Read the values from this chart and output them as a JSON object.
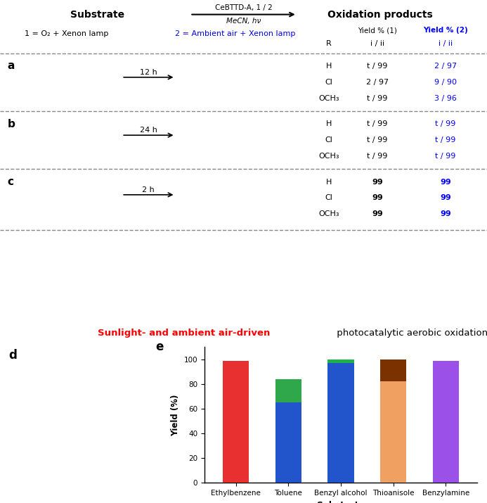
{
  "categories": [
    "Ethylbenzene",
    "Toluene",
    "Benzyl alcohol",
    "Thioanisole",
    "Benzylamine"
  ],
  "bar_data": [
    {
      "substrate": "Ethylbenzene",
      "segments": [
        {
          "value": 99,
          "color": "#e83030"
        }
      ]
    },
    {
      "substrate": "Toluene",
      "segments": [
        {
          "value": 65,
          "color": "#2255cc"
        },
        {
          "value": 19,
          "color": "#2ea84a"
        }
      ]
    },
    {
      "substrate": "Benzyl alcohol",
      "segments": [
        {
          "value": 97,
          "color": "#2255cc"
        },
        {
          "value": 3,
          "color": "#1db34a"
        }
      ]
    },
    {
      "substrate": "Thioanisole",
      "segments": [
        {
          "value": 82,
          "color": "#f0a060"
        },
        {
          "value": 18,
          "color": "#7b3200"
        }
      ]
    },
    {
      "substrate": "Benzylamine",
      "segments": [
        {
          "value": 99,
          "color": "#9b50e8"
        }
      ]
    }
  ],
  "ylabel": "Yield (%)",
  "xlabel": "Substrate",
  "ylim": [
    0,
    110
  ],
  "yticks": [
    0,
    20,
    40,
    60,
    80,
    100
  ],
  "bg_color": "#ffffff",
  "bar_width": 0.5,
  "header_arrow_text_above": "CeBTTD-A, 1 / 2",
  "header_arrow_text_below": "MeCN, hν",
  "header_left": "Substrate",
  "header_right": "Oxidation products",
  "cond1": "1 = O₂ + Xenon lamp",
  "cond2": "2 = Ambient air + Xenon lamp",
  "yield_col1_header": "Yield % (1)",
  "yield_col2_header": "Yield % (2)",
  "col_R": "R",
  "col_ratio1": "i / ii",
  "col_ratio2": "i / ii",
  "sec_a_rows": [
    [
      "H",
      "t / 99",
      "2 / 97"
    ],
    [
      "Cl",
      "2 / 97",
      "9 / 90"
    ],
    [
      "OCH₃",
      "t / 99",
      "3 / 96"
    ]
  ],
  "sec_b_rows": [
    [
      "H",
      "t / 99",
      "t / 99"
    ],
    [
      "Cl",
      "t / 99",
      "t / 99"
    ],
    [
      "OCH₃",
      "t / 99",
      "t / 99"
    ]
  ],
  "sec_c_rows": [
    [
      "H",
      "99",
      "99"
    ],
    [
      "Cl",
      "99",
      "99"
    ],
    [
      "OCH₃",
      "99",
      "99"
    ]
  ],
  "bottom_title_red": "Sunlight- and ambient air-driven",
  "bottom_title_black": " photocatalytic aerobic oxidation"
}
